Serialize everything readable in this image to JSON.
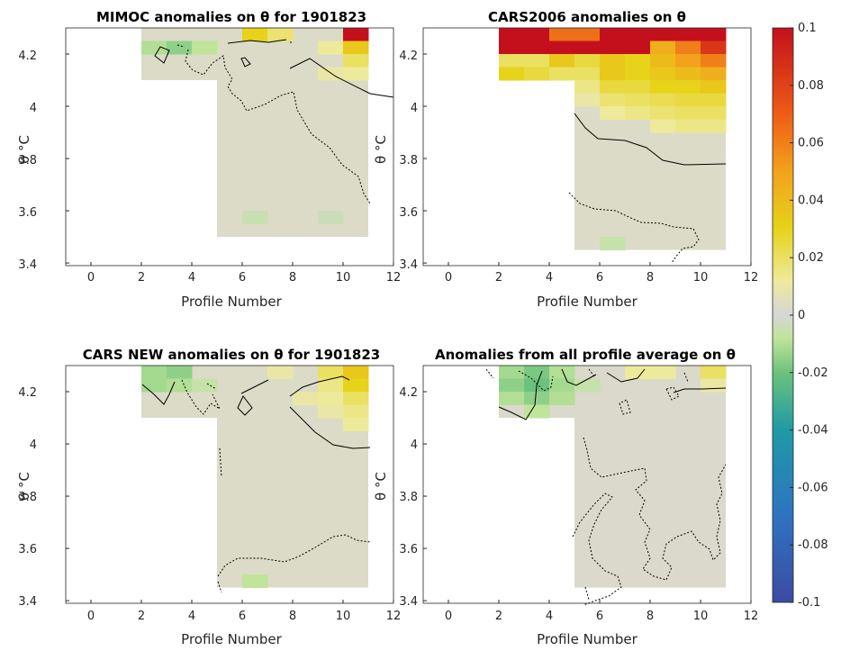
{
  "colorbar": {
    "min": -0.1,
    "max": 0.1,
    "ticks": [
      0.1,
      0.08,
      0.06,
      0.04,
      0.02,
      0,
      -0.02,
      -0.04,
      -0.06,
      -0.08,
      -0.1
    ],
    "tick_labels": [
      "0.1",
      "0.08",
      "0.06",
      "0.04",
      "0.02",
      "0",
      "-0.02",
      "-0.04",
      "-0.06",
      "-0.08",
      "-0.1"
    ],
    "colormap": "parula-like: dark blue -> teal -> green -> light grey (0) -> yellow -> orange -> dark red"
  },
  "chart_data": [
    {
      "type": "heatmap",
      "title": "MIMOC anomalies on θ  for 1901823",
      "xlabel": "Profile Number",
      "ylabel": "θ °C",
      "xlim": [
        -1,
        12
      ],
      "ylim": [
        3.39,
        4.3
      ],
      "x_ticks": [
        "0",
        "2",
        "4",
        "6",
        "8",
        "10",
        "12"
      ],
      "y_ticks": [
        "3.4",
        "3.6",
        "3.8",
        "4",
        "4.2"
      ],
      "coverage": [
        {
          "x": [
            2,
            5
          ],
          "y": [
            4.1,
            4.3
          ]
        },
        {
          "x": [
            5,
            11
          ],
          "y": [
            3.5,
            4.3
          ]
        }
      ],
      "background_anomaly": 0.003,
      "cells": [
        {
          "x": 2,
          "y": 4.2,
          "v": -0.01
        },
        {
          "x": 3,
          "y": 4.2,
          "v": -0.015
        },
        {
          "x": 4,
          "y": 4.2,
          "v": -0.008
        },
        {
          "x": 6,
          "y": 4.25,
          "v": 0.03
        },
        {
          "x": 7,
          "y": 4.25,
          "v": 0.018
        },
        {
          "x": 9,
          "y": 4.2,
          "v": 0.012
        },
        {
          "x": 10,
          "y": 4.25,
          "v": 0.1
        },
        {
          "x": 10,
          "y": 4.2,
          "v": 0.035
        },
        {
          "x": 10,
          "y": 4.15,
          "v": 0.02
        },
        {
          "x": 10,
          "y": 4.1,
          "v": 0.012
        },
        {
          "x": 9,
          "y": 4.1,
          "v": 0.01
        },
        {
          "x": 6,
          "y": 3.55,
          "v": -0.005
        },
        {
          "x": 9,
          "y": 3.55,
          "v": -0.004
        }
      ]
    },
    {
      "type": "heatmap",
      "title": "CARS2006 anomalies on θ",
      "xlabel": "Profile Number",
      "ylabel": "θ °C",
      "xlim": [
        -1,
        12
      ],
      "ylim": [
        3.39,
        4.3
      ],
      "x_ticks": [
        "0",
        "2",
        "4",
        "6",
        "8",
        "10",
        "12"
      ],
      "y_ticks": [
        "3.4",
        "3.6",
        "3.8",
        "4",
        "4.2"
      ],
      "coverage": [
        {
          "x": [
            2,
            5
          ],
          "y": [
            4.1,
            4.3
          ]
        },
        {
          "x": [
            5,
            11
          ],
          "y": [
            3.45,
            4.3
          ]
        }
      ],
      "background_anomaly": 0.003,
      "cells": [
        {
          "x": 2,
          "y": 4.25,
          "v": 0.1
        },
        {
          "x": 3,
          "y": 4.25,
          "v": 0.1
        },
        {
          "x": 4,
          "y": 4.25,
          "v": 0.065
        },
        {
          "x": 5,
          "y": 4.25,
          "v": 0.065
        },
        {
          "x": 6,
          "y": 4.25,
          "v": 0.1
        },
        {
          "x": 7,
          "y": 4.25,
          "v": 0.1
        },
        {
          "x": 8,
          "y": 4.25,
          "v": 0.1
        },
        {
          "x": 9,
          "y": 4.25,
          "v": 0.1
        },
        {
          "x": 10,
          "y": 4.25,
          "v": 0.1
        },
        {
          "x": 2,
          "y": 4.2,
          "v": 0.1
        },
        {
          "x": 3,
          "y": 4.2,
          "v": 0.1
        },
        {
          "x": 4,
          "y": 4.2,
          "v": 0.1
        },
        {
          "x": 5,
          "y": 4.2,
          "v": 0.1
        },
        {
          "x": 6,
          "y": 4.2,
          "v": 0.1
        },
        {
          "x": 7,
          "y": 4.2,
          "v": 0.1
        },
        {
          "x": 8,
          "y": 4.2,
          "v": 0.045
        },
        {
          "x": 9,
          "y": 4.2,
          "v": 0.06
        },
        {
          "x": 10,
          "y": 4.2,
          "v": 0.085
        },
        {
          "x": 2,
          "y": 4.15,
          "v": 0.02
        },
        {
          "x": 3,
          "y": 4.15,
          "v": 0.02
        },
        {
          "x": 4,
          "y": 4.15,
          "v": 0.035
        },
        {
          "x": 5,
          "y": 4.15,
          "v": 0.025
        },
        {
          "x": 6,
          "y": 4.15,
          "v": 0.035
        },
        {
          "x": 7,
          "y": 4.15,
          "v": 0.03
        },
        {
          "x": 8,
          "y": 4.15,
          "v": 0.04
        },
        {
          "x": 9,
          "y": 4.15,
          "v": 0.05
        },
        {
          "x": 10,
          "y": 4.15,
          "v": 0.06
        },
        {
          "x": 2,
          "y": 4.1,
          "v": 0.03
        },
        {
          "x": 3,
          "y": 4.1,
          "v": 0.025
        },
        {
          "x": 4,
          "y": 4.1,
          "v": 0.02
        },
        {
          "x": 5,
          "y": 4.1,
          "v": 0.02
        },
        {
          "x": 6,
          "y": 4.1,
          "v": 0.035
        },
        {
          "x": 7,
          "y": 4.1,
          "v": 0.03
        },
        {
          "x": 8,
          "y": 4.1,
          "v": 0.035
        },
        {
          "x": 9,
          "y": 4.1,
          "v": 0.04
        },
        {
          "x": 10,
          "y": 4.1,
          "v": 0.045
        },
        {
          "x": 5,
          "y": 4.05,
          "v": 0.015
        },
        {
          "x": 6,
          "y": 4.05,
          "v": 0.025
        },
        {
          "x": 7,
          "y": 4.05,
          "v": 0.025
        },
        {
          "x": 8,
          "y": 4.05,
          "v": 0.03
        },
        {
          "x": 9,
          "y": 4.05,
          "v": 0.03
        },
        {
          "x": 10,
          "y": 4.05,
          "v": 0.035
        },
        {
          "x": 5,
          "y": 4.0,
          "v": 0.01
        },
        {
          "x": 6,
          "y": 4.0,
          "v": 0.018
        },
        {
          "x": 7,
          "y": 4.0,
          "v": 0.02
        },
        {
          "x": 8,
          "y": 4.0,
          "v": 0.022
        },
        {
          "x": 9,
          "y": 4.0,
          "v": 0.025
        },
        {
          "x": 10,
          "y": 4.0,
          "v": 0.025
        },
        {
          "x": 6,
          "y": 3.95,
          "v": 0.012
        },
        {
          "x": 7,
          "y": 3.95,
          "v": 0.015
        },
        {
          "x": 8,
          "y": 3.95,
          "v": 0.018
        },
        {
          "x": 9,
          "y": 3.95,
          "v": 0.02
        },
        {
          "x": 10,
          "y": 3.95,
          "v": 0.02
        },
        {
          "x": 8,
          "y": 3.9,
          "v": 0.012
        },
        {
          "x": 9,
          "y": 3.9,
          "v": 0.015
        },
        {
          "x": 10,
          "y": 3.9,
          "v": 0.015
        },
        {
          "x": 6,
          "y": 3.45,
          "v": -0.006
        }
      ]
    },
    {
      "type": "heatmap",
      "title": "CARS NEW anomalies on θ for 1901823",
      "xlabel": "Profile Number",
      "ylabel": "θ °C",
      "xlim": [
        -1,
        12
      ],
      "ylim": [
        3.39,
        4.3
      ],
      "x_ticks": [
        "0",
        "2",
        "4",
        "6",
        "8",
        "10",
        "12"
      ],
      "y_ticks": [
        "3.4",
        "3.6",
        "3.8",
        "4",
        "4.2"
      ],
      "coverage": [
        {
          "x": [
            2,
            5
          ],
          "y": [
            4.1,
            4.3
          ]
        },
        {
          "x": [
            5,
            11
          ],
          "y": [
            3.45,
            4.3
          ]
        }
      ],
      "background_anomaly": 0.003,
      "cells": [
        {
          "x": 2,
          "y": 4.25,
          "v": -0.012
        },
        {
          "x": 3,
          "y": 4.25,
          "v": -0.015
        },
        {
          "x": 2,
          "y": 4.2,
          "v": -0.012
        },
        {
          "x": 3,
          "y": 4.2,
          "v": -0.01
        },
        {
          "x": 4,
          "y": 4.2,
          "v": -0.006
        },
        {
          "x": 7,
          "y": 4.25,
          "v": 0.01
        },
        {
          "x": 9,
          "y": 4.25,
          "v": 0.02
        },
        {
          "x": 10,
          "y": 4.25,
          "v": 0.035
        },
        {
          "x": 9,
          "y": 4.2,
          "v": 0.015
        },
        {
          "x": 10,
          "y": 4.2,
          "v": 0.03
        },
        {
          "x": 8,
          "y": 4.15,
          "v": 0.01
        },
        {
          "x": 9,
          "y": 4.15,
          "v": 0.012
        },
        {
          "x": 10,
          "y": 4.15,
          "v": 0.02
        },
        {
          "x": 10,
          "y": 4.1,
          "v": 0.015
        },
        {
          "x": 9,
          "y": 4.1,
          "v": 0.01
        },
        {
          "x": 10,
          "y": 4.05,
          "v": 0.012
        },
        {
          "x": 6,
          "y": 3.45,
          "v": -0.008
        }
      ]
    },
    {
      "type": "heatmap",
      "title": "Anomalies from all profile average on θ",
      "xlabel": "Profile Number",
      "ylabel": "θ °C",
      "xlim": [
        -1,
        12
      ],
      "ylim": [
        3.39,
        4.3
      ],
      "x_ticks": [
        "0",
        "2",
        "4",
        "6",
        "8",
        "10",
        "12"
      ],
      "y_ticks": [
        "3.4",
        "3.6",
        "3.8",
        "4",
        "4.2"
      ],
      "coverage": [
        {
          "x": [
            2,
            5
          ],
          "y": [
            4.1,
            4.3
          ]
        },
        {
          "x": [
            5,
            11
          ],
          "y": [
            3.45,
            4.3
          ]
        }
      ],
      "background_anomaly": 0.002,
      "cells": [
        {
          "x": 2,
          "y": 4.25,
          "v": -0.012
        },
        {
          "x": 3,
          "y": 4.25,
          "v": -0.018
        },
        {
          "x": 4,
          "y": 4.25,
          "v": -0.01
        },
        {
          "x": 2,
          "y": 4.2,
          "v": -0.015
        },
        {
          "x": 3,
          "y": 4.2,
          "v": -0.02
        },
        {
          "x": 4,
          "y": 4.2,
          "v": -0.012
        },
        {
          "x": 2,
          "y": 4.15,
          "v": -0.01
        },
        {
          "x": 3,
          "y": 4.15,
          "v": -0.015
        },
        {
          "x": 4,
          "y": 4.15,
          "v": -0.01
        },
        {
          "x": 3,
          "y": 4.1,
          "v": -0.008
        },
        {
          "x": 5,
          "y": 4.2,
          "v": -0.006
        },
        {
          "x": 7,
          "y": 4.25,
          "v": 0.012
        },
        {
          "x": 8,
          "y": 4.25,
          "v": 0.012
        },
        {
          "x": 10,
          "y": 4.25,
          "v": 0.02
        },
        {
          "x": 10,
          "y": 4.2,
          "v": 0.01
        }
      ]
    }
  ]
}
